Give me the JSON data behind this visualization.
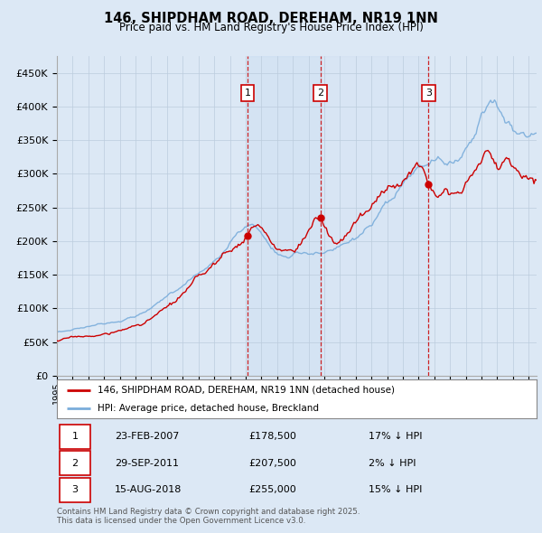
{
  "title": "146, SHIPDHAM ROAD, DEREHAM, NR19 1NN",
  "subtitle": "Price paid vs. HM Land Registry's House Price Index (HPI)",
  "ylabel_ticks": [
    "£0",
    "£50K",
    "£100K",
    "£150K",
    "£200K",
    "£250K",
    "£300K",
    "£350K",
    "£400K",
    "£450K"
  ],
  "ytick_values": [
    0,
    50000,
    100000,
    150000,
    200000,
    250000,
    300000,
    350000,
    400000,
    450000
  ],
  "ylim": [
    0,
    475000
  ],
  "xlim_start": 1995.0,
  "xlim_end": 2025.5,
  "sale_dates": [
    2007.12,
    2011.75,
    2018.62
  ],
  "sale_prices": [
    178500,
    207500,
    255000
  ],
  "sale_labels": [
    "1",
    "2",
    "3"
  ],
  "dashed_line_color": "#cc0000",
  "sale_box_color": "#cc0000",
  "hpi_color": "#7aaddb",
  "price_color": "#cc0000",
  "legend_label_price": "146, SHIPDHAM ROAD, DEREHAM, NR19 1NN (detached house)",
  "legend_label_hpi": "HPI: Average price, detached house, Breckland",
  "table_data": [
    [
      "1",
      "23-FEB-2007",
      "£178,500",
      "17% ↓ HPI"
    ],
    [
      "2",
      "29-SEP-2011",
      "£207,500",
      "2% ↓ HPI"
    ],
    [
      "3",
      "15-AUG-2018",
      "£255,000",
      "15% ↓ HPI"
    ]
  ],
  "footnote": "Contains HM Land Registry data © Crown copyright and database right 2025.\nThis data is licensed under the Open Government Licence v3.0.",
  "fig_bg_color": "#dce8f5",
  "plot_bg_color": "#dce8f5",
  "grid_color": "#bbccdd"
}
